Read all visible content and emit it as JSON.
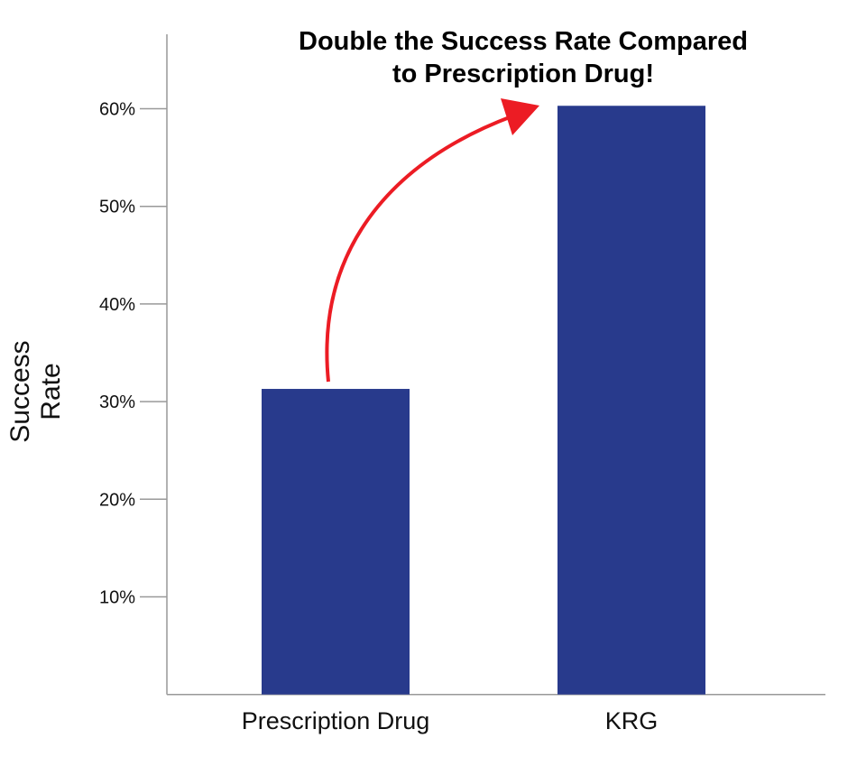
{
  "chart_data": {
    "type": "bar",
    "title_lines": [
      "Double the Success Rate Compared",
      "to Prescription Drug!"
    ],
    "xlabel": "",
    "ylabel": "Success Rate",
    "categories": [
      "Prescription Drug",
      "KRG"
    ],
    "values": [
      31.3,
      60.3
    ],
    "ylim": [
      0,
      65
    ],
    "yticks": [
      10,
      20,
      30,
      40,
      50,
      60
    ],
    "ytick_labels": [
      "10%",
      "20%",
      "30%",
      "40%",
      "50%",
      "60%"
    ],
    "grid": false,
    "legend": "none",
    "bar_color": "#283a8c",
    "annotation": {
      "type": "curved-arrow",
      "from": "Prescription Drug",
      "to": "KRG",
      "color": "#ec1c24"
    }
  }
}
